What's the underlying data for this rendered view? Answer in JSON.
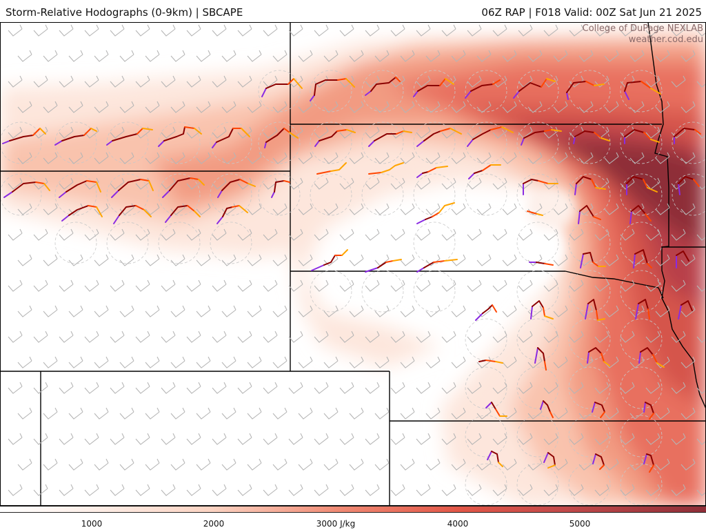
{
  "header": {
    "title_left": "Storm-Relative Hodographs (0-9km) | SBCAPE",
    "title_right": "06Z RAP | F018 Valid: 00Z Sat Jun 21 2025"
  },
  "credit": {
    "line1": "College of DuPage NEXLAB",
    "line2": "weather.cod.edu"
  },
  "colorbar": {
    "labels": [
      "1000",
      "2000",
      "3000 J/kg",
      "4000",
      "5000"
    ],
    "colors": {
      "low": "#fdf0ea",
      "mid": "#f08a74",
      "high": "#e25748",
      "max": "#8e2e38"
    }
  },
  "hodograph_colors": [
    "#8a2be2",
    "#8b0000",
    "#ff4500",
    "#ffa500"
  ]
}
